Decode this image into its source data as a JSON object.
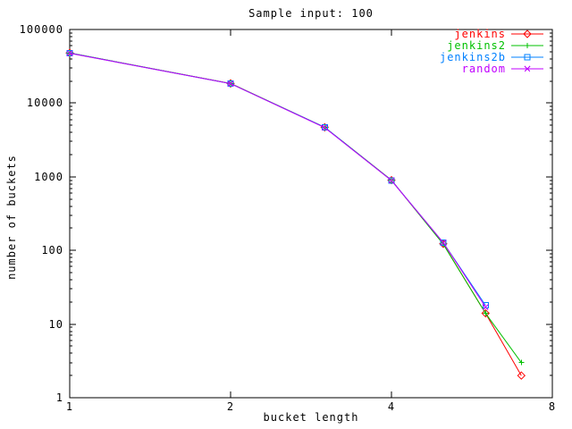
{
  "window": {
    "background": "#ffffff"
  },
  "chart_data": {
    "type": "line",
    "title": "Sample input: 100",
    "xlabel": "bucket length",
    "ylabel": "number of buckets",
    "x_scale": "log2",
    "y_scale": "log10",
    "xlim": [
      1,
      8
    ],
    "ylim": [
      1,
      100000
    ],
    "x_ticks": [
      1,
      2,
      4,
      8
    ],
    "y_ticks": [
      1,
      10,
      100,
      1000,
      10000,
      100000
    ],
    "grid": false,
    "legend_position": "top-right-inside",
    "axis_color": "#000000",
    "series": [
      {
        "name": "jenkins",
        "color": "#ff0000",
        "marker": "diamond-icon",
        "points": [
          [
            1,
            48000
          ],
          [
            2,
            18500
          ],
          [
            3,
            4700
          ],
          [
            4,
            900
          ],
          [
            5,
            123
          ],
          [
            6,
            14
          ],
          [
            7,
            2
          ]
        ]
      },
      {
        "name": "jenkins2",
        "color": "#00c000",
        "marker": "plus-icon",
        "points": [
          [
            1,
            48000
          ],
          [
            2,
            18500
          ],
          [
            3,
            4700
          ],
          [
            4,
            900
          ],
          [
            5,
            122
          ],
          [
            6,
            14
          ],
          [
            7,
            3
          ]
        ]
      },
      {
        "name": "jenkins2b",
        "color": "#0080ff",
        "marker": "square-icon",
        "points": [
          [
            1,
            47800
          ],
          [
            2,
            18400
          ],
          [
            3,
            4700
          ],
          [
            4,
            895
          ],
          [
            5,
            128
          ],
          [
            6,
            18
          ]
        ]
      },
      {
        "name": "random",
        "color": "#c000ff",
        "marker": "x-icon",
        "points": [
          [
            1,
            47500
          ],
          [
            2,
            18400
          ],
          [
            3,
            4650
          ],
          [
            4,
            890
          ],
          [
            5,
            128
          ],
          [
            6,
            17
          ]
        ]
      }
    ]
  }
}
